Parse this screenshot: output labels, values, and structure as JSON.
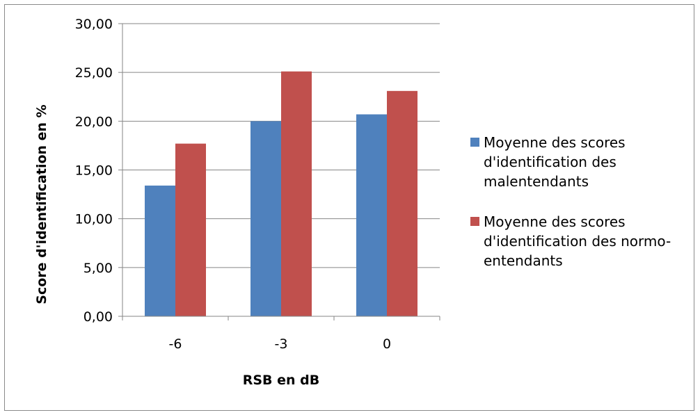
{
  "chart_data": {
    "type": "bar",
    "categories": [
      "-6",
      "-3",
      "0"
    ],
    "series": [
      {
        "name": "Moyenne des scores d'identification des malentendants",
        "legend_lines": [
          "Moyenne des scores",
          "d'identification des",
          "malentendants"
        ],
        "color": "#4f81bd",
        "values": [
          13.4,
          20.0,
          20.7
        ]
      },
      {
        "name": "Moyenne des scores d'identification des normo-entendants",
        "legend_lines": [
          "Moyenne des scores",
          "d'identification des normo-",
          "entendants"
        ],
        "color": "#c0504d",
        "values": [
          17.7,
          25.1,
          23.1
        ]
      }
    ],
    "y_ticks": [
      "0,00",
      "5,00",
      "10,00",
      "15,00",
      "20,00",
      "25,00",
      "30,00"
    ],
    "ylim": [
      0,
      30
    ],
    "xlabel": "RSB en dB",
    "ylabel": "Score d'identification en %",
    "grid": true,
    "legend_position": "right"
  }
}
